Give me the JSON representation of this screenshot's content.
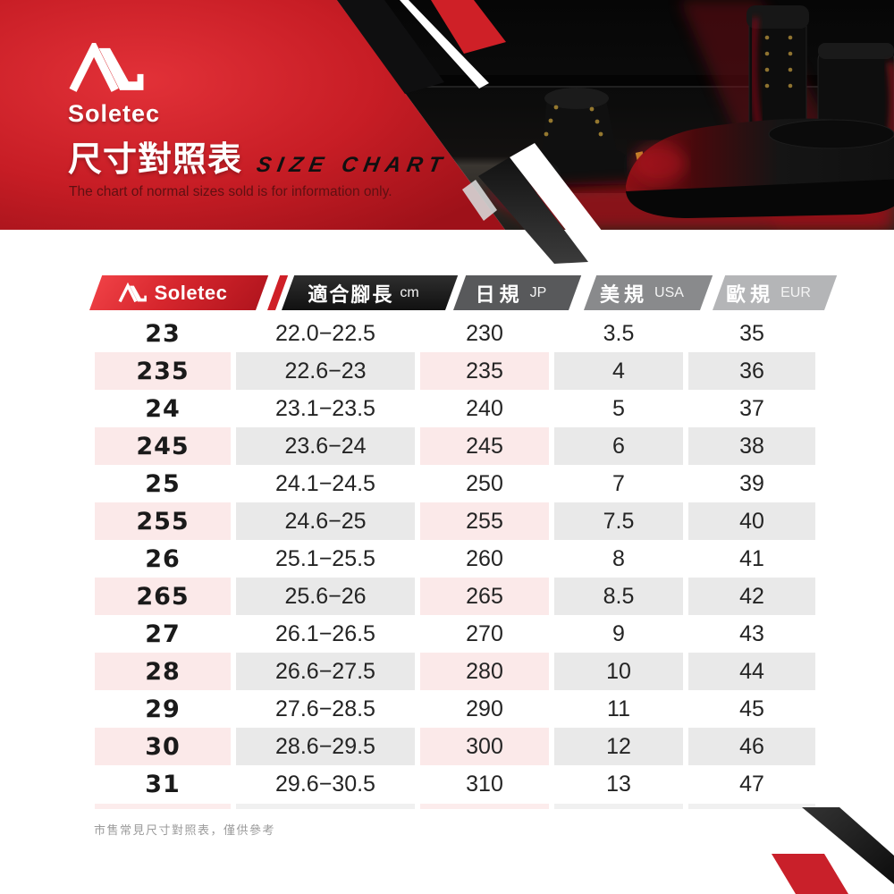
{
  "brand": {
    "name": "Soletec"
  },
  "header": {
    "title_zh": "尺寸對照表",
    "title_en": "SIZE CHART",
    "subtitle": "The chart of normal sizes sold is for information only."
  },
  "table": {
    "columns": [
      {
        "id": "size",
        "label_zh": "",
        "label_en": ""
      },
      {
        "id": "cm",
        "label_zh": "適合腳長",
        "label_en": "cm"
      },
      {
        "id": "jp",
        "label_zh": "日規",
        "label_en": "JP"
      },
      {
        "id": "usa",
        "label_zh": "美規",
        "label_en": "USA"
      },
      {
        "id": "eur",
        "label_zh": "歐規",
        "label_en": "EUR"
      }
    ],
    "rows": [
      {
        "size": "23",
        "cm": "22.0−22.5",
        "jp": "230",
        "usa": "3.5",
        "eur": "35"
      },
      {
        "size": "235",
        "cm": "22.6−23",
        "jp": "235",
        "usa": "4",
        "eur": "36"
      },
      {
        "size": "24",
        "cm": "23.1−23.5",
        "jp": "240",
        "usa": "5",
        "eur": "37"
      },
      {
        "size": "245",
        "cm": "23.6−24",
        "jp": "245",
        "usa": "6",
        "eur": "38"
      },
      {
        "size": "25",
        "cm": "24.1−24.5",
        "jp": "250",
        "usa": "7",
        "eur": "39"
      },
      {
        "size": "255",
        "cm": "24.6−25",
        "jp": "255",
        "usa": "7.5",
        "eur": "40"
      },
      {
        "size": "26",
        "cm": "25.1−25.5",
        "jp": "260",
        "usa": "8",
        "eur": "41"
      },
      {
        "size": "265",
        "cm": "25.6−26",
        "jp": "265",
        "usa": "8.5",
        "eur": "42"
      },
      {
        "size": "27",
        "cm": "26.1−26.5",
        "jp": "270",
        "usa": "9",
        "eur": "43"
      },
      {
        "size": "28",
        "cm": "26.6−27.5",
        "jp": "280",
        "usa": "10",
        "eur": "44"
      },
      {
        "size": "29",
        "cm": "27.6−28.5",
        "jp": "290",
        "usa": "11",
        "eur": "45"
      },
      {
        "size": "30",
        "cm": "28.6−29.5",
        "jp": "300",
        "usa": "12",
        "eur": "46"
      },
      {
        "size": "31",
        "cm": "29.6−30.5",
        "jp": "310",
        "usa": "13",
        "eur": "47"
      }
    ]
  },
  "footer": {
    "note": "市售常見尺寸對照表，僅供參考"
  },
  "colors": {
    "accent_red": "#d6252c",
    "header_black": "#1a1a1a",
    "header_gray_jp": "#58595b",
    "header_gray_usa": "#898a8c",
    "header_gray_eur": "#b4b5b7",
    "stripe_pink": "#fbe9e9",
    "stripe_gray": "#e9e9e9",
    "footnote_gray": "#9b9b9b"
  }
}
